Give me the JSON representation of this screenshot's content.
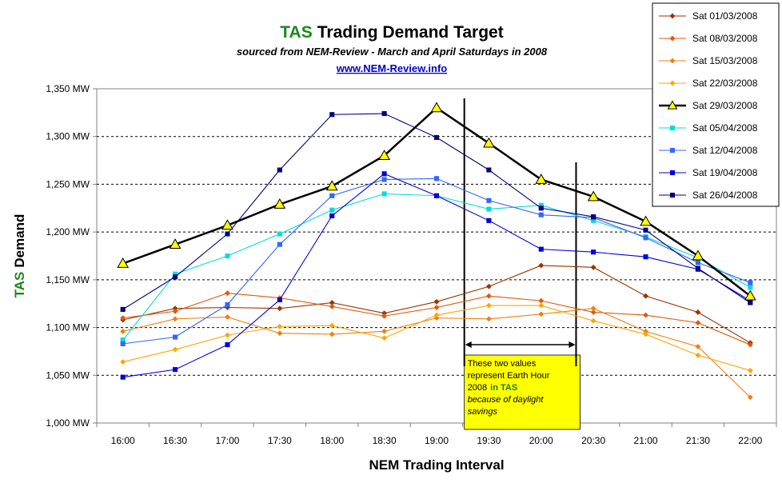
{
  "chart_data": {
    "type": "line",
    "title_prefix": "TAS",
    "title_rest": "Trading Demand Target",
    "subtitle": "sourced from NEM-Review - March and April Saturdays in 2008",
    "link": "www.NEM-Review.info",
    "ylabel_prefix": "TAS",
    "ylabel_rest": "Demand",
    "xlabel": "NEM Trading Interval",
    "categories": [
      "16:00",
      "16:30",
      "17:00",
      "17:30",
      "18:00",
      "18:30",
      "19:00",
      "19:30",
      "20:00",
      "20:30",
      "21:00",
      "21:30",
      "22:00"
    ],
    "ylim": [
      1000,
      1350
    ],
    "y_ticks": [
      1000,
      1050,
      1100,
      1150,
      1200,
      1250,
      1300,
      1350
    ],
    "y_tick_labels": [
      "1,000 MW",
      "1,050 MW",
      "1,100 MW",
      "1,150 MW",
      "1,200 MW",
      "1,250 MW",
      "1,300 MW",
      "1,350 MW"
    ],
    "grid": "horizontal dashed",
    "legend_position": "top-right",
    "series": [
      {
        "name": "Sat 01/03/2008",
        "color": "#993300",
        "marker": "diamond",
        "values": [
          1108,
          1120,
          1121,
          1120,
          1126,
          1115,
          1127,
          1143,
          1165,
          1163,
          1133,
          1116,
          1084
        ]
      },
      {
        "name": "Sat 08/03/2008",
        "color": "#e05a0a",
        "marker": "diamond",
        "values": [
          1110,
          1117,
          1136,
          1131,
          1122,
          1112,
          1121,
          1133,
          1128,
          1116,
          1113,
          1105,
          1082
        ]
      },
      {
        "name": "Sat 15/03/2008",
        "color": "#f07f10",
        "marker": "diamond",
        "values": [
          1096,
          1109,
          1111,
          1094,
          1093,
          1096,
          1110,
          1109,
          1114,
          1120,
          1096,
          1080,
          1027
        ]
      },
      {
        "name": "Sat 22/03/2008",
        "color": "#ffa500",
        "marker": "diamond",
        "values": [
          1064,
          1077,
          1092,
          1101,
          1102,
          1089,
          1113,
          1123,
          1123,
          1107,
          1093,
          1071,
          1055
        ]
      },
      {
        "name": "Sat 29/03/2008",
        "color": "#000000",
        "marker": "triangle",
        "marker_fill": "#ffff00",
        "bold": true,
        "values": [
          1167,
          1187,
          1207,
          1229,
          1248,
          1280,
          1330,
          1293,
          1255,
          1237,
          1211,
          1175,
          1133
        ]
      },
      {
        "name": "Sat 05/04/2008",
        "color": "#00dddd",
        "marker": "square",
        "values": [
          1087,
          1156,
          1175,
          1198,
          1223,
          1240,
          1238,
          1224,
          1228,
          1212,
          1195,
          1173,
          1142
        ]
      },
      {
        "name": "Sat 12/04/2008",
        "color": "#3366ff",
        "marker": "square",
        "values": [
          1083,
          1090,
          1124,
          1187,
          1238,
          1255,
          1256,
          1233,
          1218,
          1215,
          1194,
          1168,
          1147
        ]
      },
      {
        "name": "Sat 19/04/2008",
        "color": "#0000dd",
        "marker": "square",
        "values": [
          1048,
          1056,
          1082,
          1129,
          1217,
          1261,
          1238,
          1212,
          1182,
          1179,
          1174,
          1161,
          1128
        ]
      },
      {
        "name": "Sat 26/04/2008",
        "color": "#000080",
        "marker": "square",
        "values": [
          1119,
          1153,
          1198,
          1265,
          1323,
          1324,
          1299,
          1265,
          1225,
          1216,
          1202,
          1162,
          1126
        ]
      }
    ],
    "annotation": {
      "line1": "These two values",
      "line2": "represent Earth Hour",
      "line3_prefix": "2008",
      "line3_highlight": "in TAS",
      "line4": "because of daylight",
      "line5": "savings",
      "highlight_color": "#1a7a1a",
      "background": "#ffff00",
      "bracket_from": "19:30",
      "bracket_to": "20:30"
    },
    "colors": {
      "title_accent": "#1a8a1a",
      "link": "#0000cc",
      "grid": "#000000"
    }
  }
}
